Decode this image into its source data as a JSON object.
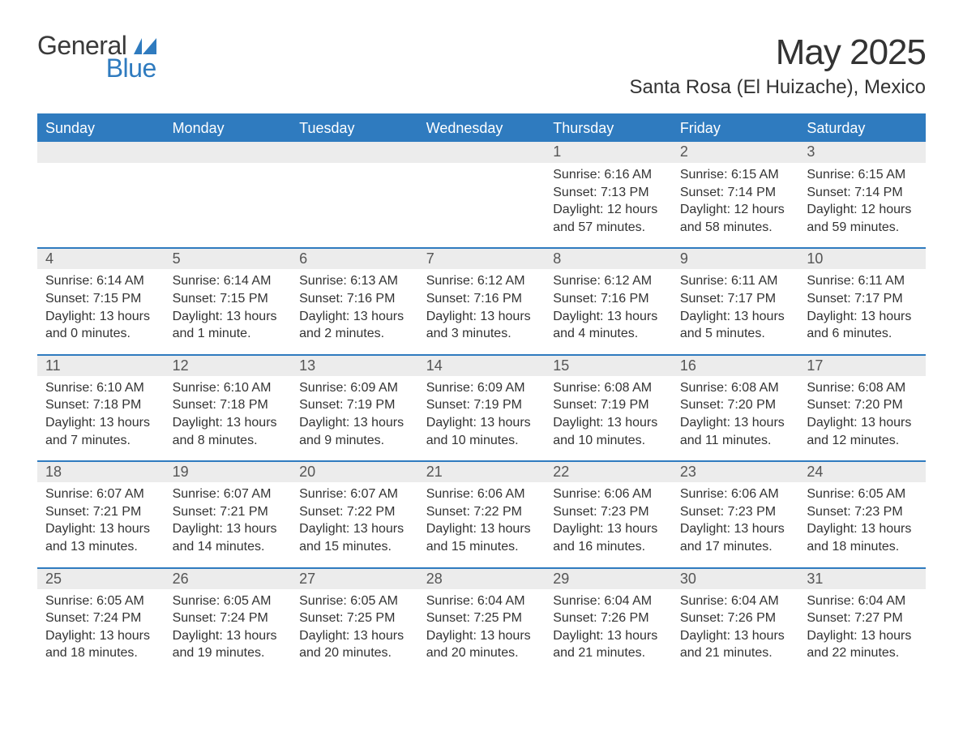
{
  "brand": {
    "name_pre": "General",
    "name_post": "Blue"
  },
  "title": "May 2025",
  "location": "Santa Rosa (El Huizache), Mexico",
  "colors": {
    "header_bg": "#2f7bbf",
    "header_text": "#ffffff",
    "daynum_bg": "#ececec",
    "row_divider": "#2f7bbf",
    "body_text": "#333333",
    "page_bg": "#ffffff"
  },
  "typography": {
    "title_fontsize": 44,
    "location_fontsize": 24,
    "header_fontsize": 18,
    "daynum_fontsize": 18,
    "cell_fontsize": 16,
    "font_family": "Segoe UI"
  },
  "weekdays": [
    "Sunday",
    "Monday",
    "Tuesday",
    "Wednesday",
    "Thursday",
    "Friday",
    "Saturday"
  ],
  "weeks": [
    [
      null,
      null,
      null,
      null,
      {
        "day": "1",
        "sunrise": "6:16 AM",
        "sunset": "7:13 PM",
        "daylight": "12 hours and 57 minutes."
      },
      {
        "day": "2",
        "sunrise": "6:15 AM",
        "sunset": "7:14 PM",
        "daylight": "12 hours and 58 minutes."
      },
      {
        "day": "3",
        "sunrise": "6:15 AM",
        "sunset": "7:14 PM",
        "daylight": "12 hours and 59 minutes."
      }
    ],
    [
      {
        "day": "4",
        "sunrise": "6:14 AM",
        "sunset": "7:15 PM",
        "daylight": "13 hours and 0 minutes."
      },
      {
        "day": "5",
        "sunrise": "6:14 AM",
        "sunset": "7:15 PM",
        "daylight": "13 hours and 1 minute."
      },
      {
        "day": "6",
        "sunrise": "6:13 AM",
        "sunset": "7:16 PM",
        "daylight": "13 hours and 2 minutes."
      },
      {
        "day": "7",
        "sunrise": "6:12 AM",
        "sunset": "7:16 PM",
        "daylight": "13 hours and 3 minutes."
      },
      {
        "day": "8",
        "sunrise": "6:12 AM",
        "sunset": "7:16 PM",
        "daylight": "13 hours and 4 minutes."
      },
      {
        "day": "9",
        "sunrise": "6:11 AM",
        "sunset": "7:17 PM",
        "daylight": "13 hours and 5 minutes."
      },
      {
        "day": "10",
        "sunrise": "6:11 AM",
        "sunset": "7:17 PM",
        "daylight": "13 hours and 6 minutes."
      }
    ],
    [
      {
        "day": "11",
        "sunrise": "6:10 AM",
        "sunset": "7:18 PM",
        "daylight": "13 hours and 7 minutes."
      },
      {
        "day": "12",
        "sunrise": "6:10 AM",
        "sunset": "7:18 PM",
        "daylight": "13 hours and 8 minutes."
      },
      {
        "day": "13",
        "sunrise": "6:09 AM",
        "sunset": "7:19 PM",
        "daylight": "13 hours and 9 minutes."
      },
      {
        "day": "14",
        "sunrise": "6:09 AM",
        "sunset": "7:19 PM",
        "daylight": "13 hours and 10 minutes."
      },
      {
        "day": "15",
        "sunrise": "6:08 AM",
        "sunset": "7:19 PM",
        "daylight": "13 hours and 10 minutes."
      },
      {
        "day": "16",
        "sunrise": "6:08 AM",
        "sunset": "7:20 PM",
        "daylight": "13 hours and 11 minutes."
      },
      {
        "day": "17",
        "sunrise": "6:08 AM",
        "sunset": "7:20 PM",
        "daylight": "13 hours and 12 minutes."
      }
    ],
    [
      {
        "day": "18",
        "sunrise": "6:07 AM",
        "sunset": "7:21 PM",
        "daylight": "13 hours and 13 minutes."
      },
      {
        "day": "19",
        "sunrise": "6:07 AM",
        "sunset": "7:21 PM",
        "daylight": "13 hours and 14 minutes."
      },
      {
        "day": "20",
        "sunrise": "6:07 AM",
        "sunset": "7:22 PM",
        "daylight": "13 hours and 15 minutes."
      },
      {
        "day": "21",
        "sunrise": "6:06 AM",
        "sunset": "7:22 PM",
        "daylight": "13 hours and 15 minutes."
      },
      {
        "day": "22",
        "sunrise": "6:06 AM",
        "sunset": "7:23 PM",
        "daylight": "13 hours and 16 minutes."
      },
      {
        "day": "23",
        "sunrise": "6:06 AM",
        "sunset": "7:23 PM",
        "daylight": "13 hours and 17 minutes."
      },
      {
        "day": "24",
        "sunrise": "6:05 AM",
        "sunset": "7:23 PM",
        "daylight": "13 hours and 18 minutes."
      }
    ],
    [
      {
        "day": "25",
        "sunrise": "6:05 AM",
        "sunset": "7:24 PM",
        "daylight": "13 hours and 18 minutes."
      },
      {
        "day": "26",
        "sunrise": "6:05 AM",
        "sunset": "7:24 PM",
        "daylight": "13 hours and 19 minutes."
      },
      {
        "day": "27",
        "sunrise": "6:05 AM",
        "sunset": "7:25 PM",
        "daylight": "13 hours and 20 minutes."
      },
      {
        "day": "28",
        "sunrise": "6:04 AM",
        "sunset": "7:25 PM",
        "daylight": "13 hours and 20 minutes."
      },
      {
        "day": "29",
        "sunrise": "6:04 AM",
        "sunset": "7:26 PM",
        "daylight": "13 hours and 21 minutes."
      },
      {
        "day": "30",
        "sunrise": "6:04 AM",
        "sunset": "7:26 PM",
        "daylight": "13 hours and 21 minutes."
      },
      {
        "day": "31",
        "sunrise": "6:04 AM",
        "sunset": "7:27 PM",
        "daylight": "13 hours and 22 minutes."
      }
    ]
  ],
  "labels": {
    "sunrise": "Sunrise:",
    "sunset": "Sunset:",
    "daylight": "Daylight:"
  }
}
